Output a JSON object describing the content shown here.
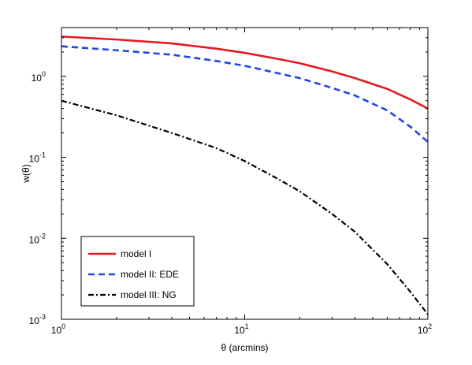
{
  "chart_data": {
    "type": "line",
    "title": "",
    "xlabel": "θ (arcmins)",
    "ylabel": "w(θ)",
    "xscale": "log",
    "yscale": "log",
    "xlim": [
      1,
      100
    ],
    "ylim": [
      0.001,
      4
    ],
    "grid": false,
    "legend_position": "bottom-left",
    "x_ticks": [
      {
        "value": 1,
        "base": "10",
        "exp": "0"
      },
      {
        "value": 10,
        "base": "10",
        "exp": "1"
      },
      {
        "value": 100,
        "base": "10",
        "exp": "2"
      }
    ],
    "y_ticks": [
      {
        "value": 0.001,
        "base": "10",
        "exp": "-3"
      },
      {
        "value": 0.01,
        "base": "10",
        "exp": "-2"
      },
      {
        "value": 0.1,
        "base": "10",
        "exp": "-1"
      },
      {
        "value": 1,
        "base": "10",
        "exp": "0"
      }
    ],
    "series": [
      {
        "name": "model I",
        "color": "#e8191c",
        "dash": "solid",
        "x": [
          1,
          2,
          4,
          7,
          10,
          15,
          20,
          30,
          40,
          60,
          80,
          100
        ],
        "y": [
          3.1,
          2.85,
          2.55,
          2.2,
          1.95,
          1.65,
          1.45,
          1.15,
          0.95,
          0.7,
          0.52,
          0.4
        ]
      },
      {
        "name": "model II: EDE",
        "color": "#2146e0",
        "dash": "dashed",
        "x": [
          1,
          2,
          4,
          7,
          10,
          15,
          20,
          30,
          40,
          60,
          80,
          100
        ],
        "y": [
          2.35,
          2.1,
          1.85,
          1.55,
          1.35,
          1.1,
          0.95,
          0.72,
          0.58,
          0.38,
          0.24,
          0.155
        ]
      },
      {
        "name": "model III: NG",
        "color": "#000000",
        "dash": "dashdot",
        "x": [
          1,
          2,
          4,
          7,
          10,
          15,
          20,
          30,
          40,
          60,
          80,
          100
        ],
        "y": [
          0.5,
          0.33,
          0.2,
          0.13,
          0.09,
          0.055,
          0.038,
          0.02,
          0.012,
          0.0048,
          0.0022,
          0.00115
        ]
      }
    ]
  }
}
